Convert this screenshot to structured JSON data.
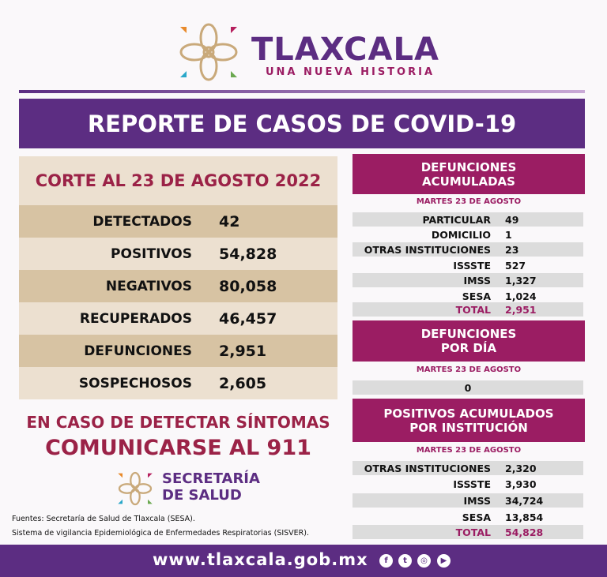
{
  "header": {
    "brand": "TLAXCALA",
    "tagline": "UNA NUEVA HISTORIA",
    "title": "REPORTE DE CASOS DE COVID-19"
  },
  "summary": {
    "cut_date": "CORTE AL 23 DE AGOSTO 2022",
    "rows": [
      {
        "label": "DETECTADOS",
        "value": "42"
      },
      {
        "label": "POSITIVOS",
        "value": "54,828"
      },
      {
        "label": "NEGATIVOS",
        "value": "80,058"
      },
      {
        "label": "RECUPERADOS",
        "value": "46,457"
      },
      {
        "label": "DEFUNCIONES",
        "value": "2,951"
      },
      {
        "label": "SOSPECHOSOS",
        "value": "2,605"
      }
    ]
  },
  "deaths": {
    "title1": "DEFUNCIONES",
    "title2": "ACUMULADAS",
    "date": "MARTES 23 DE AGOSTO",
    "rows": [
      {
        "label": "PARTICULAR",
        "value": "49"
      },
      {
        "label": "DOMICILIO",
        "value": "1"
      },
      {
        "label": "OTRAS INSTITUCIONES",
        "value": "23"
      },
      {
        "label": "ISSSTE",
        "value": "527"
      },
      {
        "label": "IMSS",
        "value": "1,327"
      },
      {
        "label": "SESA",
        "value": "1,024"
      },
      {
        "label": "TOTAL",
        "value": "2,951"
      }
    ]
  },
  "daily": {
    "title1": "DEFUNCIONES",
    "title2": "POR DÍA",
    "date": "MARTES 23 DE AGOSTO",
    "value": "0"
  },
  "positives": {
    "title1": "POSITIVOS ACUMULADOS",
    "title2": "POR INSTITUCIÓN",
    "date": "MARTES 23 DE AGOSTO",
    "rows": [
      {
        "label": "OTRAS INSTITUCIONES",
        "value": "2,320"
      },
      {
        "label": "ISSSTE",
        "value": "3,930"
      },
      {
        "label": "IMSS",
        "value": "34,724"
      },
      {
        "label": "SESA",
        "value": "13,854"
      },
      {
        "label": "TOTAL",
        "value": "54,828"
      }
    ]
  },
  "callout": {
    "line1": "EN CASO DE DETECTAR SÍNTOMAS",
    "line2": "COMUNICARSE AL 911"
  },
  "secretaria": {
    "line1": "SECRETARÍA",
    "line2": "DE SALUD"
  },
  "sources": {
    "line1": "Fuentes:  Secretaría de Salud de Tlaxcala (SESA).",
    "line2": "Sistema de vigilancia Epidemiológica de Enfermedades Respiratorias (SISVER)."
  },
  "footer": {
    "url": "www.tlaxcala.gob.mx",
    "social": [
      "facebook-icon",
      "twitter-icon",
      "instagram-icon",
      "youtube-icon"
    ]
  },
  "colors": {
    "purple": "#5c2d82",
    "magenta": "#9b1d63",
    "tan_dark": "#d7c3a3",
    "tan_light": "#ece0d0"
  }
}
